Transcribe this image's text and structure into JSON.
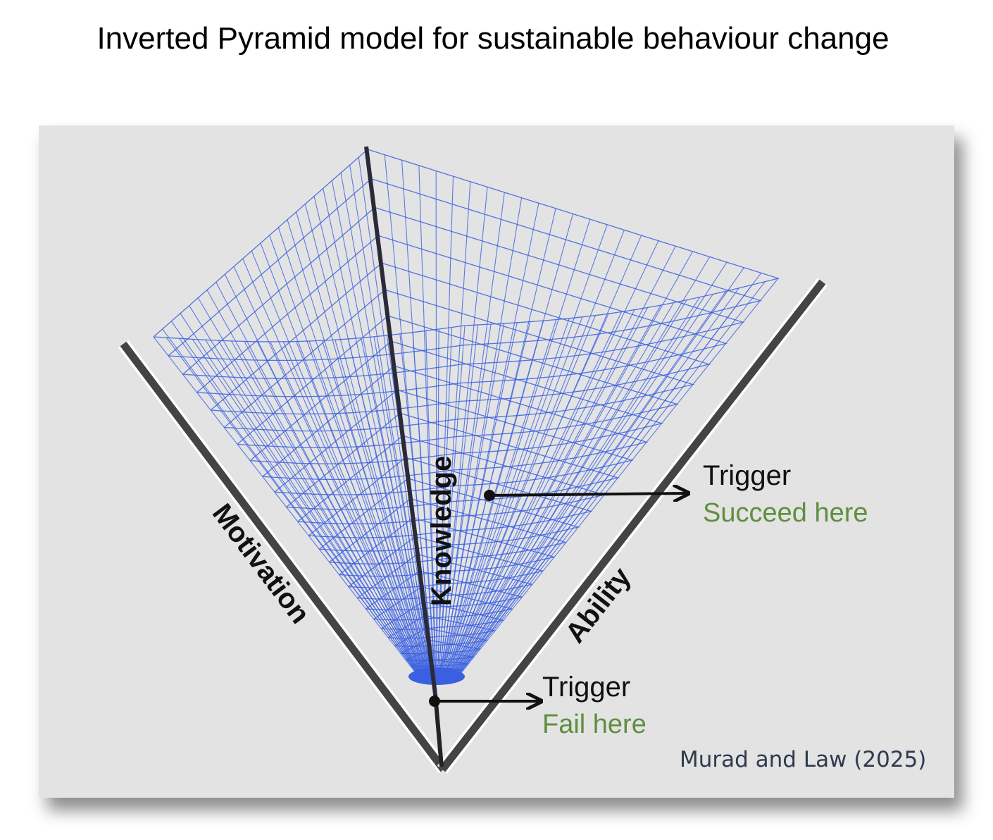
{
  "title": "Inverted Pyramid model for sustainable behaviour change",
  "axes": {
    "motivation": "Motivation",
    "knowledge": "Knowledge",
    "ability": "Ability"
  },
  "triggers": [
    {
      "label": "Trigger",
      "outcome": "Succeed here"
    },
    {
      "label": "Trigger",
      "outcome": "Fail here"
    }
  ],
  "credit": "Murad and Law (2025)",
  "colors": {
    "mesh": "#3a5fe0",
    "panel": "#e3e3e3",
    "axis": "#3a3a3a",
    "outcome_text": "#5f8f3e"
  }
}
